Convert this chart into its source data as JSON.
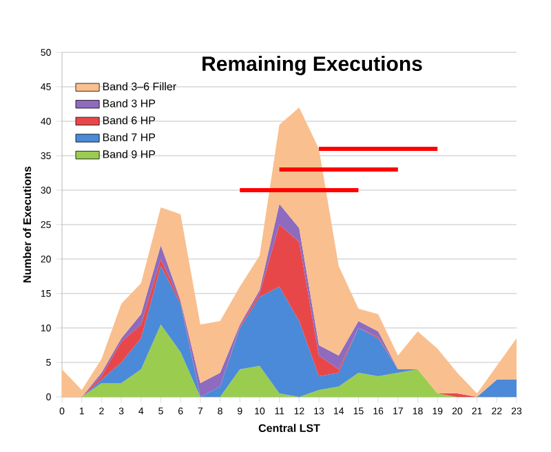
{
  "chart_data": {
    "type": "area",
    "stacked": true,
    "title": "Remaining Executions",
    "xlabel": "Central LST",
    "ylabel": "Number of Executions",
    "x": [
      0,
      1,
      2,
      3,
      4,
      5,
      6,
      7,
      8,
      9,
      10,
      11,
      12,
      13,
      14,
      15,
      16,
      17,
      18,
      19,
      20,
      21,
      22,
      23
    ],
    "xlim": [
      0,
      23
    ],
    "xticks": [
      0,
      1,
      2,
      3,
      4,
      5,
      6,
      7,
      8,
      9,
      10,
      11,
      12,
      13,
      14,
      15,
      16,
      17,
      18,
      19,
      20,
      21,
      22,
      23
    ],
    "ylim": [
      0,
      50
    ],
    "yticks": [
      0,
      5,
      10,
      15,
      20,
      25,
      30,
      35,
      40,
      45,
      50
    ],
    "grid": "y",
    "legend": "top left",
    "series": [
      {
        "name": "Band 9 HP",
        "color": "#9acd4f",
        "values": [
          0,
          0,
          2,
          2,
          4,
          10.5,
          6.5,
          0,
          0,
          4,
          4.5,
          0.5,
          0,
          1,
          1.5,
          3.5,
          3,
          3.5,
          4,
          0.5,
          0,
          0,
          0,
          0
        ]
      },
      {
        "name": "Band 7 HP",
        "color": "#4a8ad8",
        "values": [
          0,
          0,
          0.5,
          3,
          4.5,
          8.5,
          7,
          0,
          1.5,
          6,
          10,
          15.5,
          11,
          2,
          2,
          6.5,
          5.5,
          0.5,
          0,
          0,
          0,
          0,
          2.5,
          2.5
        ]
      },
      {
        "name": "Band 6 HP",
        "color": "#e8474a",
        "values": [
          0,
          0,
          0.5,
          3,
          2,
          1,
          0.3,
          0,
          0,
          0.2,
          0.5,
          9,
          11.5,
          3,
          0.5,
          0,
          0.2,
          0,
          0,
          0,
          0.5,
          0,
          0,
          0
        ]
      },
      {
        "name": "Band 3 HP",
        "color": "#8e6bbf",
        "values": [
          0,
          0,
          0.5,
          0.5,
          1.5,
          2,
          0.2,
          2,
          2,
          0.3,
          0.5,
          3,
          2,
          1.5,
          2,
          1,
          0.8,
          0,
          0,
          0,
          0,
          0,
          0,
          0
        ]
      },
      {
        "name": "Band 3–6 Filler",
        "color": "#f9bf8f",
        "values": [
          4,
          1,
          2,
          5,
          4.5,
          5.5,
          12.5,
          8.5,
          7.5,
          5.5,
          5,
          11.5,
          17.5,
          28.5,
          13,
          1.8,
          2.5,
          2,
          5.5,
          6.5,
          3,
          0.5,
          2,
          6
        ]
      },
      {
        "type": "line",
        "color": "#ff0000",
        "x": [
          9,
          15
        ],
        "values": [
          30,
          30
        ]
      },
      {
        "type": "line",
        "color": "#ff0000",
        "x": [
          11,
          17
        ],
        "values": [
          33,
          33
        ]
      },
      {
        "type": "line",
        "color": "#ff0000",
        "x": [
          13,
          19
        ],
        "values": [
          36,
          36
        ]
      }
    ]
  }
}
